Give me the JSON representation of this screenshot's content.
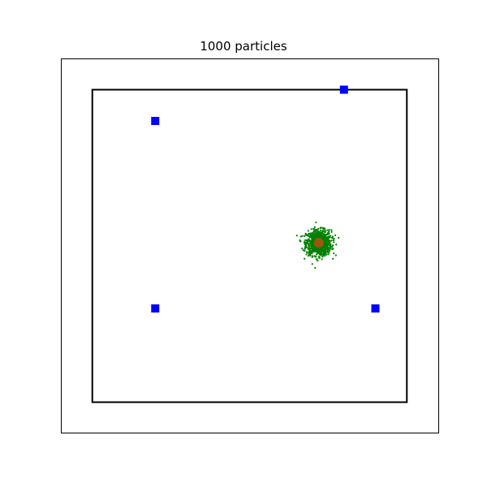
{
  "chart_data": {
    "type": "scatter",
    "title": "1000 particles",
    "xlim": [
      -2.0,
      10.0
    ],
    "ylim": [
      -2.0,
      10.0
    ],
    "grid": false,
    "axis_ticks": false,
    "boundary": {
      "x": [
        -1.0,
        9.0
      ],
      "y": [
        -1.0,
        9.0
      ],
      "color": "#000000"
    },
    "landmarks": {
      "color": "#0000ff",
      "marker": "square",
      "points": [
        [
          1.0,
          8.0
        ],
        [
          7.0,
          9.0
        ],
        [
          1.0,
          2.0
        ],
        [
          8.0,
          2.0
        ]
      ]
    },
    "particles": {
      "count": 1000,
      "color": "#008000",
      "center": [
        6.2,
        4.1
      ],
      "spread": 0.2
    },
    "estimate": {
      "color": "#d24a12",
      "point": [
        6.2,
        4.1
      ]
    }
  }
}
